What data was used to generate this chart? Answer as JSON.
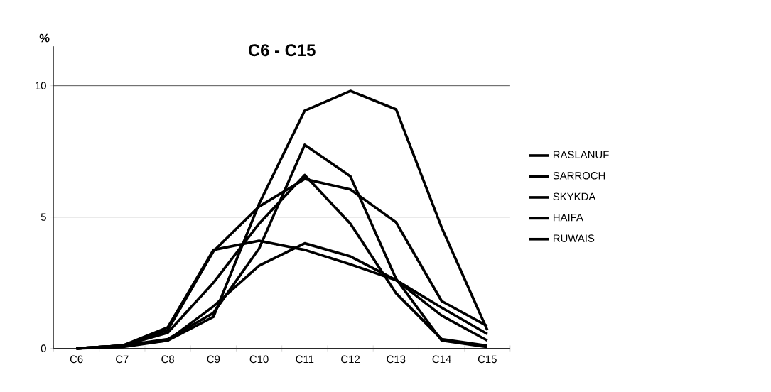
{
  "chart_data": {
    "type": "line",
    "title": "C6 - C15",
    "ylabel": "%",
    "categories": [
      "C6",
      "C7",
      "C8",
      "C9",
      "C10",
      "C11",
      "C12",
      "C13",
      "C14",
      "C15"
    ],
    "ylim": [
      0,
      11.5
    ],
    "yticks": [
      0,
      5,
      10
    ],
    "grid": "y",
    "legend": "right",
    "marker": "none",
    "line_style": "solid",
    "series": [
      {
        "name": "RASLANUF",
        "color": "#000000",
        "values": [
          0,
          0.05,
          0.3,
          1.2,
          5.5,
          9.05,
          9.8,
          9.1,
          4.6,
          0.7
        ]
      },
      {
        "name": "SARROCH",
        "color": "#000000",
        "values": [
          0,
          0.1,
          0.35,
          1.35,
          3.8,
          7.75,
          6.55,
          2.65,
          0.3,
          0.05
        ]
      },
      {
        "name": "SKYKDA",
        "color": "#000000",
        "values": [
          0,
          0.1,
          0.7,
          3.7,
          5.4,
          6.45,
          6.05,
          4.8,
          1.8,
          0.85
        ]
      },
      {
        "name": "HAIFA",
        "color": "#000000",
        "values": [
          0,
          0.1,
          0.6,
          2.5,
          4.75,
          6.6,
          4.75,
          2.1,
          0.35,
          0.1
        ]
      },
      {
        "name": "RUWAIS",
        "color": "#000000",
        "values": [
          0,
          0.1,
          0.8,
          3.75,
          4.1,
          3.75,
          3.2,
          2.6,
          1.55,
          0.55
        ]
      },
      {
        "color": "#000000",
        "values": [
          0,
          0.1,
          0.3,
          1.6,
          3.15,
          4.0,
          3.5,
          2.6,
          1.25,
          0.3
        ]
      }
    ]
  }
}
